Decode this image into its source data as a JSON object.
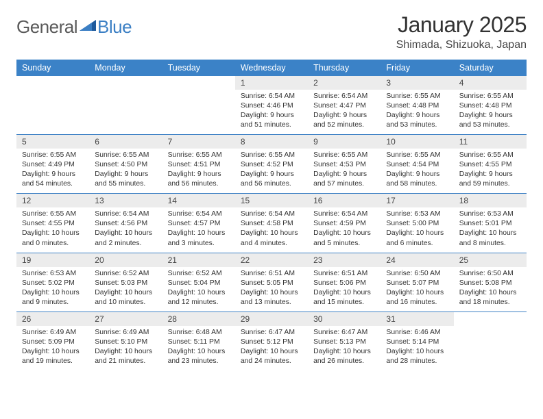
{
  "brand": {
    "part1": "General",
    "part2": "Blue",
    "color1": "#5a5a5a",
    "color2": "#3b7fc4"
  },
  "title": "January 2025",
  "location": "Shimada, Shizuoka, Japan",
  "styling": {
    "header_bg": "#3b82c7",
    "header_fg": "#ffffff",
    "daynum_bg": "#ececec",
    "cell_bg": "#ffffff",
    "divider": "#3b7fc4",
    "body_font_size": 10.4,
    "daynum_font_size": 12,
    "header_font_size": 12.5,
    "title_font_size": 32,
    "location_font_size": 16
  },
  "day_headers": [
    "Sunday",
    "Monday",
    "Tuesday",
    "Wednesday",
    "Thursday",
    "Friday",
    "Saturday"
  ],
  "weeks": [
    [
      null,
      null,
      null,
      {
        "n": "1",
        "sr": "6:54 AM",
        "ss": "4:46 PM",
        "dl": "9 hours and 51 minutes."
      },
      {
        "n": "2",
        "sr": "6:54 AM",
        "ss": "4:47 PM",
        "dl": "9 hours and 52 minutes."
      },
      {
        "n": "3",
        "sr": "6:55 AM",
        "ss": "4:48 PM",
        "dl": "9 hours and 53 minutes."
      },
      {
        "n": "4",
        "sr": "6:55 AM",
        "ss": "4:48 PM",
        "dl": "9 hours and 53 minutes."
      }
    ],
    [
      {
        "n": "5",
        "sr": "6:55 AM",
        "ss": "4:49 PM",
        "dl": "9 hours and 54 minutes."
      },
      {
        "n": "6",
        "sr": "6:55 AM",
        "ss": "4:50 PM",
        "dl": "9 hours and 55 minutes."
      },
      {
        "n": "7",
        "sr": "6:55 AM",
        "ss": "4:51 PM",
        "dl": "9 hours and 56 minutes."
      },
      {
        "n": "8",
        "sr": "6:55 AM",
        "ss": "4:52 PM",
        "dl": "9 hours and 56 minutes."
      },
      {
        "n": "9",
        "sr": "6:55 AM",
        "ss": "4:53 PM",
        "dl": "9 hours and 57 minutes."
      },
      {
        "n": "10",
        "sr": "6:55 AM",
        "ss": "4:54 PM",
        "dl": "9 hours and 58 minutes."
      },
      {
        "n": "11",
        "sr": "6:55 AM",
        "ss": "4:55 PM",
        "dl": "9 hours and 59 minutes."
      }
    ],
    [
      {
        "n": "12",
        "sr": "6:55 AM",
        "ss": "4:55 PM",
        "dl": "10 hours and 0 minutes."
      },
      {
        "n": "13",
        "sr": "6:54 AM",
        "ss": "4:56 PM",
        "dl": "10 hours and 2 minutes."
      },
      {
        "n": "14",
        "sr": "6:54 AM",
        "ss": "4:57 PM",
        "dl": "10 hours and 3 minutes."
      },
      {
        "n": "15",
        "sr": "6:54 AM",
        "ss": "4:58 PM",
        "dl": "10 hours and 4 minutes."
      },
      {
        "n": "16",
        "sr": "6:54 AM",
        "ss": "4:59 PM",
        "dl": "10 hours and 5 minutes."
      },
      {
        "n": "17",
        "sr": "6:53 AM",
        "ss": "5:00 PM",
        "dl": "10 hours and 6 minutes."
      },
      {
        "n": "18",
        "sr": "6:53 AM",
        "ss": "5:01 PM",
        "dl": "10 hours and 8 minutes."
      }
    ],
    [
      {
        "n": "19",
        "sr": "6:53 AM",
        "ss": "5:02 PM",
        "dl": "10 hours and 9 minutes."
      },
      {
        "n": "20",
        "sr": "6:52 AM",
        "ss": "5:03 PM",
        "dl": "10 hours and 10 minutes."
      },
      {
        "n": "21",
        "sr": "6:52 AM",
        "ss": "5:04 PM",
        "dl": "10 hours and 12 minutes."
      },
      {
        "n": "22",
        "sr": "6:51 AM",
        "ss": "5:05 PM",
        "dl": "10 hours and 13 minutes."
      },
      {
        "n": "23",
        "sr": "6:51 AM",
        "ss": "5:06 PM",
        "dl": "10 hours and 15 minutes."
      },
      {
        "n": "24",
        "sr": "6:50 AM",
        "ss": "5:07 PM",
        "dl": "10 hours and 16 minutes."
      },
      {
        "n": "25",
        "sr": "6:50 AM",
        "ss": "5:08 PM",
        "dl": "10 hours and 18 minutes."
      }
    ],
    [
      {
        "n": "26",
        "sr": "6:49 AM",
        "ss": "5:09 PM",
        "dl": "10 hours and 19 minutes."
      },
      {
        "n": "27",
        "sr": "6:49 AM",
        "ss": "5:10 PM",
        "dl": "10 hours and 21 minutes."
      },
      {
        "n": "28",
        "sr": "6:48 AM",
        "ss": "5:11 PM",
        "dl": "10 hours and 23 minutes."
      },
      {
        "n": "29",
        "sr": "6:47 AM",
        "ss": "5:12 PM",
        "dl": "10 hours and 24 minutes."
      },
      {
        "n": "30",
        "sr": "6:47 AM",
        "ss": "5:13 PM",
        "dl": "10 hours and 26 minutes."
      },
      {
        "n": "31",
        "sr": "6:46 AM",
        "ss": "5:14 PM",
        "dl": "10 hours and 28 minutes."
      },
      null
    ]
  ],
  "labels": {
    "sunrise": "Sunrise:",
    "sunset": "Sunset:",
    "daylight": "Daylight:"
  }
}
